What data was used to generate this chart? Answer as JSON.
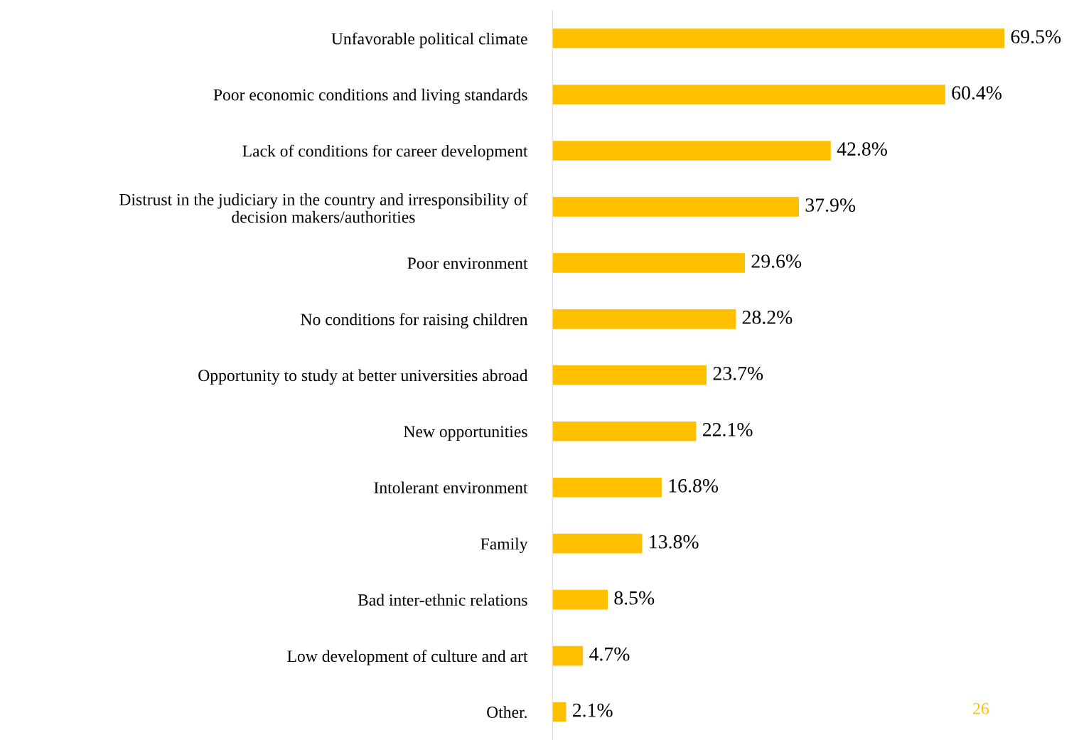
{
  "chart_data": {
    "type": "bar",
    "orientation": "horizontal",
    "categories": [
      "Unfavorable political climate",
      "Poor economic conditions and living standards",
      "Lack of conditions for career development",
      "Distrust in the judiciary in the country and irresponsibility of\ndecision makers/authorities",
      "Poor environment",
      "No conditions for raising children",
      "Opportunity to study at better universities abroad",
      "New opportunities",
      "Intolerant environment",
      "Family",
      "Bad inter-ethnic relations",
      "Low development of culture and art",
      "Other."
    ],
    "values": [
      69.5,
      60.4,
      42.8,
      37.9,
      29.6,
      28.2,
      23.7,
      22.1,
      16.8,
      13.8,
      8.5,
      4.7,
      2.1
    ],
    "value_labels": [
      "69.5%",
      "60.4%",
      "42.8%",
      "37.9%",
      "29.6%",
      "28.2%",
      "23.7%",
      "22.1%",
      "16.8%",
      "13.8%",
      "8.5%",
      "4.7%",
      "2.1%"
    ],
    "color": "#ffc000",
    "tick_labels": "y",
    "grid": false,
    "legend": false,
    "annotations": [
      "26"
    ]
  }
}
